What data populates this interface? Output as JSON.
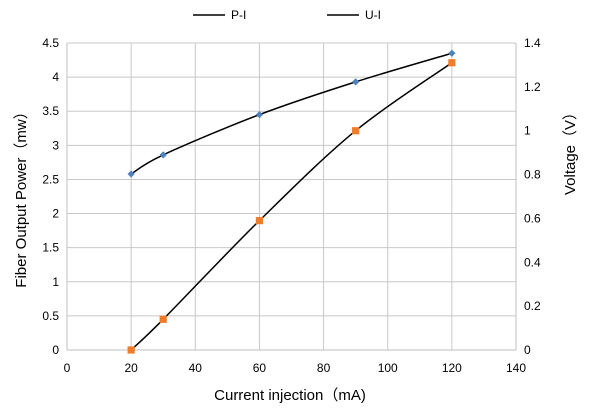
{
  "chart_data": {
    "type": "line",
    "xlabel": "Current injection（mA)",
    "ylabel_left": "Fiber Output Power（mw）",
    "ylabel_right": "Voltage（V）",
    "xlim": [
      0,
      140
    ],
    "ylim_left": [
      0,
      4.5
    ],
    "ylim_right": [
      0,
      1.4
    ],
    "x_ticks": [
      "0",
      "20",
      "40",
      "60",
      "80",
      "100",
      "120",
      "140"
    ],
    "y_left_ticks": [
      "0",
      "0.5",
      "1",
      "1.5",
      "2",
      "2.5",
      "3",
      "3.5",
      "4",
      "4.5"
    ],
    "y_right_ticks": [
      "0",
      "0.2",
      "0.4",
      "0.6",
      "0.8",
      "1",
      "1.2",
      "1.4"
    ],
    "grid": true,
    "legend_position": "top",
    "series": [
      {
        "name": "P-I",
        "axis": "left",
        "marker": "diamond",
        "marker_color": "#4f81bd",
        "x": [
          20,
          30,
          60,
          90,
          120
        ],
        "y": [
          2.58,
          2.86,
          3.45,
          3.93,
          4.35
        ]
      },
      {
        "name": "U-I",
        "axis": "right",
        "marker": "square",
        "marker_color": "#f07c2a",
        "x": [
          20,
          30,
          60,
          90,
          120
        ],
        "y": [
          0,
          0.14,
          0.59,
          1.0,
          1.31
        ]
      }
    ]
  }
}
